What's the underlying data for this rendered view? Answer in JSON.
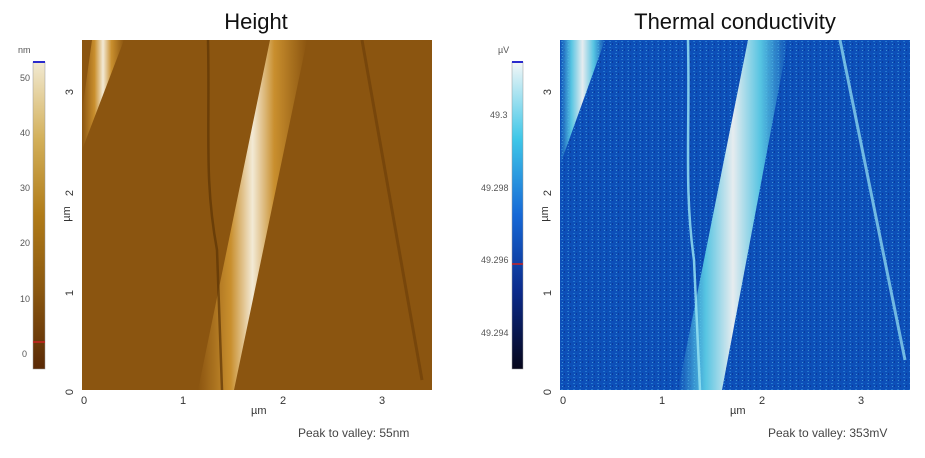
{
  "panels": [
    {
      "title": "Height",
      "colorbar": {
        "unit": "nm",
        "ticks": [
          "50",
          "40",
          "30",
          "20",
          "10",
          "0"
        ],
        "colors": [
          "#5a2a06",
          "#8a5710",
          "#b07b18",
          "#d3b05a",
          "#f2ead2"
        ],
        "marker_color": "#cc2222",
        "cap_color": "#2b2bcc"
      },
      "y_ticks": [
        "3",
        "2",
        "1",
        "0"
      ],
      "x_ticks": [
        "0",
        "1",
        "2",
        "3"
      ],
      "axis_unit": "µm",
      "footer": "Peak to valley: 55nm",
      "image_colors": {
        "background": "#8b5510",
        "band_center": "#f3ead6",
        "band_edge": "#c98f2e"
      }
    },
    {
      "title": "Thermal conductivity",
      "colorbar": {
        "unit": "µV",
        "ticks": [
          "49.3",
          "49.298",
          "49.296",
          "49.294"
        ],
        "colors": [
          "#06061a",
          "#0b2a8a",
          "#1668d6",
          "#3fc7e8",
          "#f4f7f7"
        ],
        "marker_color": "#cc2222",
        "cap_color": "#2b2bcc"
      },
      "y_ticks": [
        "3",
        "2",
        "1",
        "0"
      ],
      "x_ticks": [
        "0",
        "1",
        "2",
        "3"
      ],
      "axis_unit": "µm",
      "footer": "Peak to valley: 353mV",
      "image_colors": {
        "background": "#0d4fb8",
        "band_center": "#e6ecef",
        "band_edge": "#56c4e2"
      }
    }
  ]
}
